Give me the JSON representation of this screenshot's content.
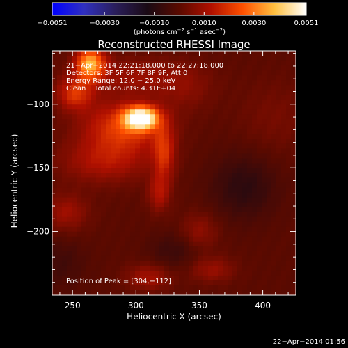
{
  "chart_data": {
    "type": "heatmap",
    "title": "Reconstructed RHESSI Image",
    "xlabel": "Heliocentric X (arcsec)",
    "ylabel": "Heliocentric Y (arcsec)",
    "xlim": [
      234,
      426
    ],
    "ylim": [
      -250,
      -58
    ],
    "x_ticks": [
      250,
      300,
      350,
      400
    ],
    "y_ticks": [
      -100,
      -150,
      -200
    ],
    "colorbar": {
      "range": [
        -0.0051,
        0.0051
      ],
      "ticks": [
        -0.0051,
        -0.003,
        -0.001,
        0.001,
        0.003,
        0.0051
      ],
      "tick_labels": [
        "−0.0051",
        "−0.0030",
        "−0.0010",
        "0.0010",
        "0.0030",
        "0.0051"
      ],
      "label_parts": [
        "(photons cm",
        "−2",
        " s",
        "−1",
        " asec",
        "−2",
        ")"
      ],
      "stops": [
        "#0000ff",
        "#3030c0",
        "#2a1e5a",
        "#1a0a14",
        "#5a0a00",
        "#b01000",
        "#ff5000",
        "#ffc040",
        "#ffffff"
      ]
    },
    "info_lines": [
      "21−Apr−2014 22:21:18.000 to 22:27:18.000",
      "Detectors: 3F 5F 6F 7F 8F 9F, Att 0",
      "Energy Range: 12.0 − 25.0 keV",
      "Clean    Total counts: 4.31E+04"
    ],
    "peak_label": "Position of Peak = [304,−112]",
    "peak": [
      304,
      -112
    ],
    "peak_value": 0.0051,
    "sources": [
      {
        "x": 304,
        "y": -111,
        "sx": 9,
        "sy": 6,
        "amp": 0.0051
      },
      {
        "x": 290,
        "y": -118,
        "sx": 22,
        "sy": 14,
        "amp": 0.0021
      },
      {
        "x": 264,
        "y": -68,
        "sx": 8,
        "sy": 9,
        "amp": 0.0036
      },
      {
        "x": 252,
        "y": -92,
        "sx": 10,
        "sy": 9,
        "amp": 0.0019
      },
      {
        "x": 275,
        "y": -145,
        "sx": 24,
        "sy": 12,
        "amp": 0.0012
      },
      {
        "x": 322,
        "y": -138,
        "sx": 6,
        "sy": 16,
        "amp": 0.0017
      },
      {
        "x": 318,
        "y": -170,
        "sx": 6,
        "sy": 10,
        "amp": 0.0012
      },
      {
        "x": 302,
        "y": -78,
        "sx": 30,
        "sy": 10,
        "amp": 0.0009
      },
      {
        "x": 350,
        "y": -200,
        "sx": 10,
        "sy": 10,
        "amp": 0.0008
      },
      {
        "x": 245,
        "y": -185,
        "sx": 12,
        "sy": 10,
        "amp": 0.001
      },
      {
        "x": 310,
        "y": -236,
        "sx": 12,
        "sy": 7,
        "amp": 0.0011
      },
      {
        "x": 360,
        "y": -230,
        "sx": 12,
        "sy": 7,
        "amp": 0.0009
      },
      {
        "x": 385,
        "y": -165,
        "sx": 18,
        "sy": 18,
        "amp": -0.0009
      },
      {
        "x": 330,
        "y": -215,
        "sx": 14,
        "sy": 10,
        "amp": -0.0006
      },
      {
        "x": 240,
        "y": -225,
        "sx": 14,
        "sy": 14,
        "amp": -0.0005
      },
      {
        "x": 410,
        "y": -110,
        "sx": 20,
        "sy": 20,
        "amp": 0.0004
      },
      {
        "x": 340,
        "y": -90,
        "sx": 15,
        "sy": 12,
        "amp": 0.0005
      }
    ]
  },
  "footer": {
    "timestamp": "22−Apr−2014 01:56"
  }
}
